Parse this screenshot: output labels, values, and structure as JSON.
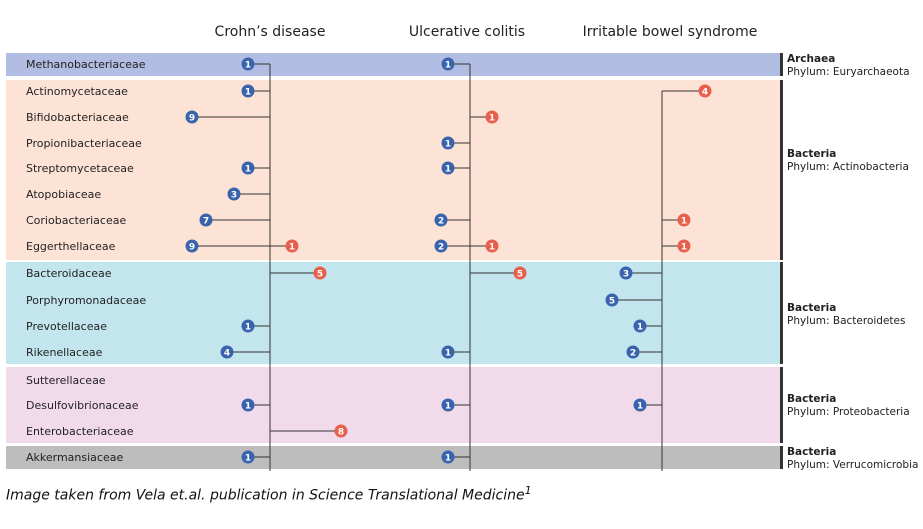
{
  "chart_data": {
    "type": "table",
    "columns": [
      "Crohn’s disease",
      "Ulcerative colitis",
      "Irritable bowel syndrome"
    ],
    "colors": {
      "blue_badge": "#3a63ad",
      "red_badge": "#e8604c",
      "archaea_band": "#b2bde3",
      "actino_band": "#fde3d6",
      "bacteroid_band": "#c3e5ee",
      "proteo_band": "#f1dbeb",
      "verruco_band": "#bdbdbd"
    },
    "groups": [
      {
        "domain": "Archaea",
        "phylum": "Phylum: Euryarchaeota",
        "families": [
          {
            "name": "Methanobacteriaceae",
            "cells": [
              {
                "n": 1,
                "dir": "blue"
              },
              {
                "n": 1,
                "dir": "blue"
              },
              null
            ]
          }
        ]
      },
      {
        "domain": "Bacteria",
        "phylum": "Phylum: Actinobacteria",
        "families": [
          {
            "name": "Actinomycetaceae",
            "cells": [
              {
                "n": 1,
                "dir": "blue"
              },
              null,
              {
                "n": 4,
                "dir": "red"
              }
            ]
          },
          {
            "name": "Bifidobacteriaceae",
            "cells": [
              {
                "n": 9,
                "dir": "blue"
              },
              {
                "n": 1,
                "dir": "red"
              },
              null
            ]
          },
          {
            "name": "Propionibacteriaceae",
            "cells": [
              null,
              {
                "n": 1,
                "dir": "blue"
              },
              null
            ]
          },
          {
            "name": "Streptomycetaceae",
            "cells": [
              {
                "n": 1,
                "dir": "blue"
              },
              {
                "n": 1,
                "dir": "blue"
              },
              null
            ]
          },
          {
            "name": "Atopobiaceae",
            "cells": [
              {
                "n": 3,
                "dir": "blue"
              },
              null,
              null
            ]
          },
          {
            "name": "Coriobacteriaceae",
            "cells": [
              {
                "n": 7,
                "dir": "blue"
              },
              {
                "n": 2,
                "dir": "blue"
              },
              {
                "n": 1,
                "dir": "red"
              }
            ]
          },
          {
            "name": "Eggerthellaceae",
            "cells": [
              [
                {
                  "n": 9,
                  "dir": "blue"
                },
                {
                  "n": 1,
                  "dir": "red"
                }
              ],
              [
                {
                  "n": 2,
                  "dir": "blue"
                },
                {
                  "n": 1,
                  "dir": "red"
                }
              ],
              {
                "n": 1,
                "dir": "red"
              }
            ]
          }
        ]
      },
      {
        "domain": "Bacteria",
        "phylum": "Phylum: Bacteroidetes",
        "families": [
          {
            "name": "Bacteroidaceae",
            "cells": [
              {
                "n": 5,
                "dir": "red"
              },
              {
                "n": 5,
                "dir": "red"
              },
              {
                "n": 3,
                "dir": "blue"
              }
            ]
          },
          {
            "name": "Porphyromonadaceae",
            "cells": [
              null,
              null,
              {
                "n": 5,
                "dir": "blue"
              }
            ]
          },
          {
            "name": "Prevotellaceae",
            "cells": [
              {
                "n": 1,
                "dir": "blue"
              },
              null,
              {
                "n": 1,
                "dir": "blue"
              }
            ]
          },
          {
            "name": "Rikenellaceae",
            "cells": [
              {
                "n": 4,
                "dir": "blue"
              },
              {
                "n": 1,
                "dir": "blue"
              },
              {
                "n": 2,
                "dir": "blue"
              }
            ]
          }
        ]
      },
      {
        "domain": "Bacteria",
        "phylum": "Phylum: Proteobacteria",
        "families": [
          {
            "name": "Sutterellaceae",
            "cells": [
              null,
              null,
              null
            ]
          },
          {
            "name": "Desulfovibrionaceae",
            "cells": [
              {
                "n": 1,
                "dir": "blue"
              },
              {
                "n": 1,
                "dir": "blue"
              },
              {
                "n": 1,
                "dir": "blue"
              }
            ]
          },
          {
            "name": "Enterobacteriaceae",
            "cells": [
              {
                "n": 8,
                "dir": "red"
              },
              null,
              null
            ]
          }
        ]
      },
      {
        "domain": "Bacteria",
        "phylum": "Phylum: Verrucomicrobia",
        "families": [
          {
            "name": "Akkermansiaceae",
            "cells": [
              {
                "n": 1,
                "dir": "blue"
              },
              {
                "n": 1,
                "dir": "blue"
              },
              null
            ]
          }
        ]
      }
    ]
  },
  "caption": {
    "text": "Image taken from Vela et.al. publication in Science Translational Medicine",
    "sup": "1"
  }
}
